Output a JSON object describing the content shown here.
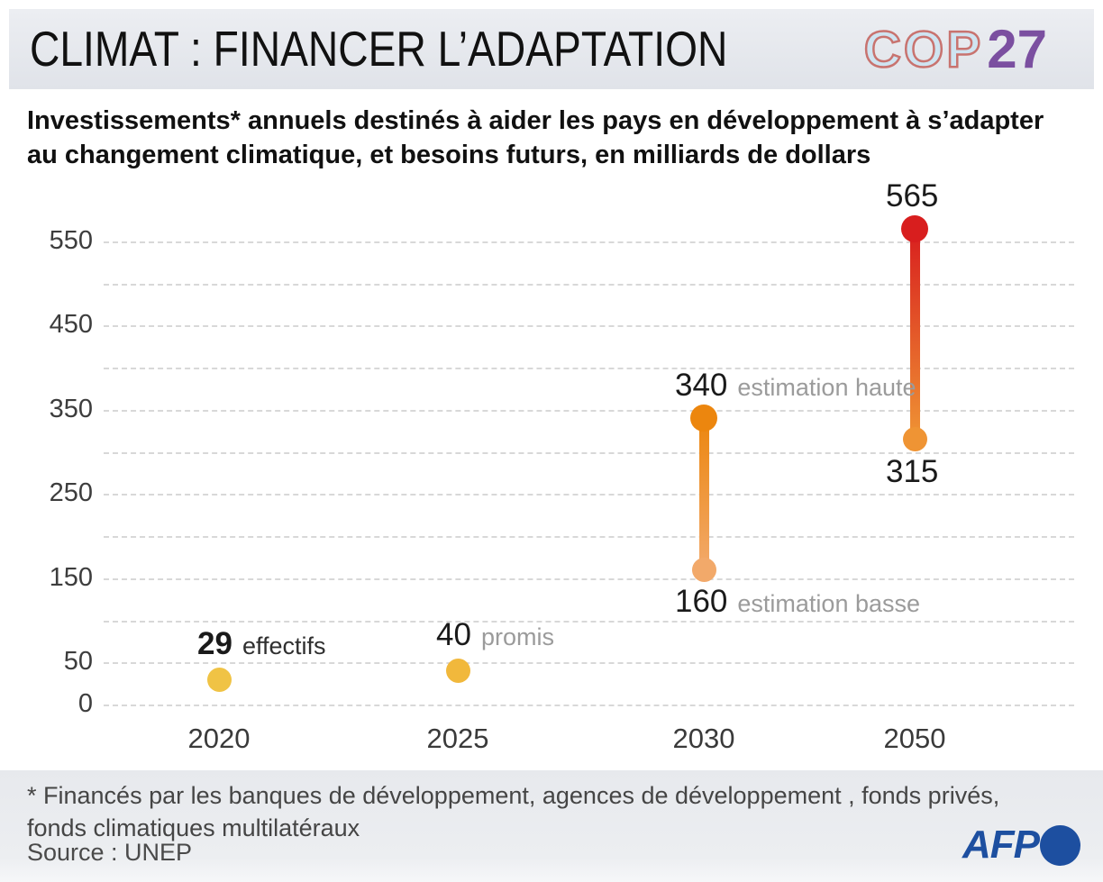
{
  "header": {
    "title": "CLIMAT : FINANCER L’ADAPTATION",
    "logo_cop": "COP",
    "logo_27": "27"
  },
  "subtitle": "Investissements* annuels destinés à aider les pays en développement à s’adapter au changement climatique, et besoins futurs, en milliards de dollars",
  "footer": {
    "footnote_line1": "* Financés par les banques de développement, agences de développement , fonds privés,",
    "footnote_line2": "fonds climatiques multilatéraux",
    "source": "Source : UNEP",
    "afp_label": "AFP"
  },
  "chart_data": {
    "type": "scatter",
    "subtype": "dot-and-range",
    "categories": [
      "2020",
      "2025",
      "2030",
      "2050"
    ],
    "ylim": [
      0,
      550
    ],
    "ytick_labels": [
      550,
      450,
      350,
      250,
      150,
      50,
      0
    ],
    "grid_step": 50,
    "grid": true,
    "colors": {
      "grid": "#d8d8d8",
      "accent_yellow": "#f0c345",
      "accent_orange": "#ec860e",
      "accent_red": "#d81e1e",
      "afp_blue": "#1d4fa0",
      "cop_purple": "#7b4fa0"
    },
    "points": [
      {
        "category": "2020",
        "kind": "dot",
        "value": 29,
        "label": "29",
        "suffix": "effectifs",
        "color": "#f0c345",
        "label_bold": true,
        "suffix_muted": false
      },
      {
        "category": "2025",
        "kind": "dot",
        "value": 40,
        "label": "40",
        "suffix": "promis",
        "color": "#f1b83c",
        "label_bold": false,
        "suffix_muted": true
      },
      {
        "category": "2030",
        "kind": "range",
        "high": 340,
        "low": 160,
        "high_label": "340",
        "low_label": "160",
        "high_suffix": "estimation haute",
        "low_suffix": "estimation basse",
        "color_high": "#ec860e",
        "color_low": "#f2a96a"
      },
      {
        "category": "2050",
        "kind": "range",
        "high": 565,
        "low": 315,
        "high_label": "565",
        "low_label": "315",
        "high_suffix": "",
        "low_suffix": "",
        "color_high": "#d81e1e",
        "color_low": "#ef9434"
      }
    ]
  }
}
